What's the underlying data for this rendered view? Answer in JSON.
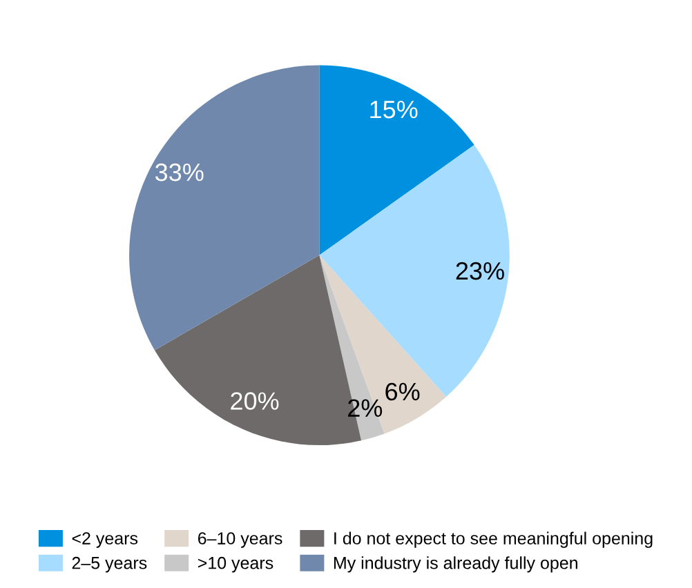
{
  "chart_data": {
    "type": "pie",
    "categories": [
      "<2 years",
      "2–5 years",
      "6–10 years",
      ">10 years",
      "I do not expect to see meaningful opening",
      "My industry is already fully open"
    ],
    "values": [
      15,
      23,
      6,
      2,
      20,
      33
    ],
    "colors": [
      "#0090e0",
      "#a6dcff",
      "#e0d6cc",
      "#c8c8c8",
      "#6e6a69",
      "#7088ac"
    ],
    "value_labels": [
      "15%",
      "23%",
      "6%",
      "2%",
      "20%",
      "33%"
    ],
    "legend": "bottom"
  }
}
